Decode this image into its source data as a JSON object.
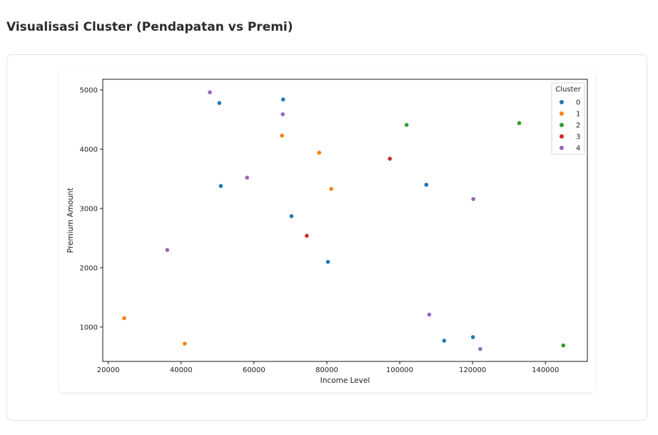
{
  "page": {
    "title": "Visualisasi Cluster (Pendapatan vs Premi)"
  },
  "chart_data": {
    "type": "scatter",
    "title": "",
    "xlabel": "Income Level",
    "ylabel": "Premium Amount",
    "xlim": [
      18500,
      151500
    ],
    "ylim": [
      420,
      5180
    ],
    "xticks": [
      20000,
      40000,
      60000,
      80000,
      100000,
      120000,
      140000
    ],
    "yticks": [
      1000,
      2000,
      3000,
      4000,
      5000
    ],
    "grid": false,
    "legend": {
      "title": "Cluster",
      "placement": "top-right"
    },
    "series": [
      {
        "name": "0",
        "color": "#1f77b4",
        "x": [
          50500,
          68000,
          50900,
          70300,
          80300,
          107300,
          112200,
          120100
        ],
        "y": [
          4780,
          4840,
          3380,
          2870,
          2100,
          3400,
          770,
          830
        ]
      },
      {
        "name": "1",
        "color": "#ff7f0e",
        "x": [
          67700,
          77900,
          81200,
          24400,
          41000
        ],
        "y": [
          4230,
          3940,
          3330,
          1150,
          720
        ]
      },
      {
        "name": "2",
        "color": "#2ca02c",
        "x": [
          101900,
          132800,
          144900
        ],
        "y": [
          4410,
          4440,
          690
        ]
      },
      {
        "name": "3",
        "color": "#d62728",
        "x": [
          97300,
          74500
        ],
        "y": [
          3840,
          2540
        ]
      },
      {
        "name": "4",
        "color": "#9467bd",
        "x": [
          47900,
          67900,
          58100,
          36200,
          120200,
          108100,
          122100
        ],
        "y": [
          4960,
          4590,
          3520,
          2300,
          3160,
          1210,
          630
        ]
      }
    ]
  }
}
